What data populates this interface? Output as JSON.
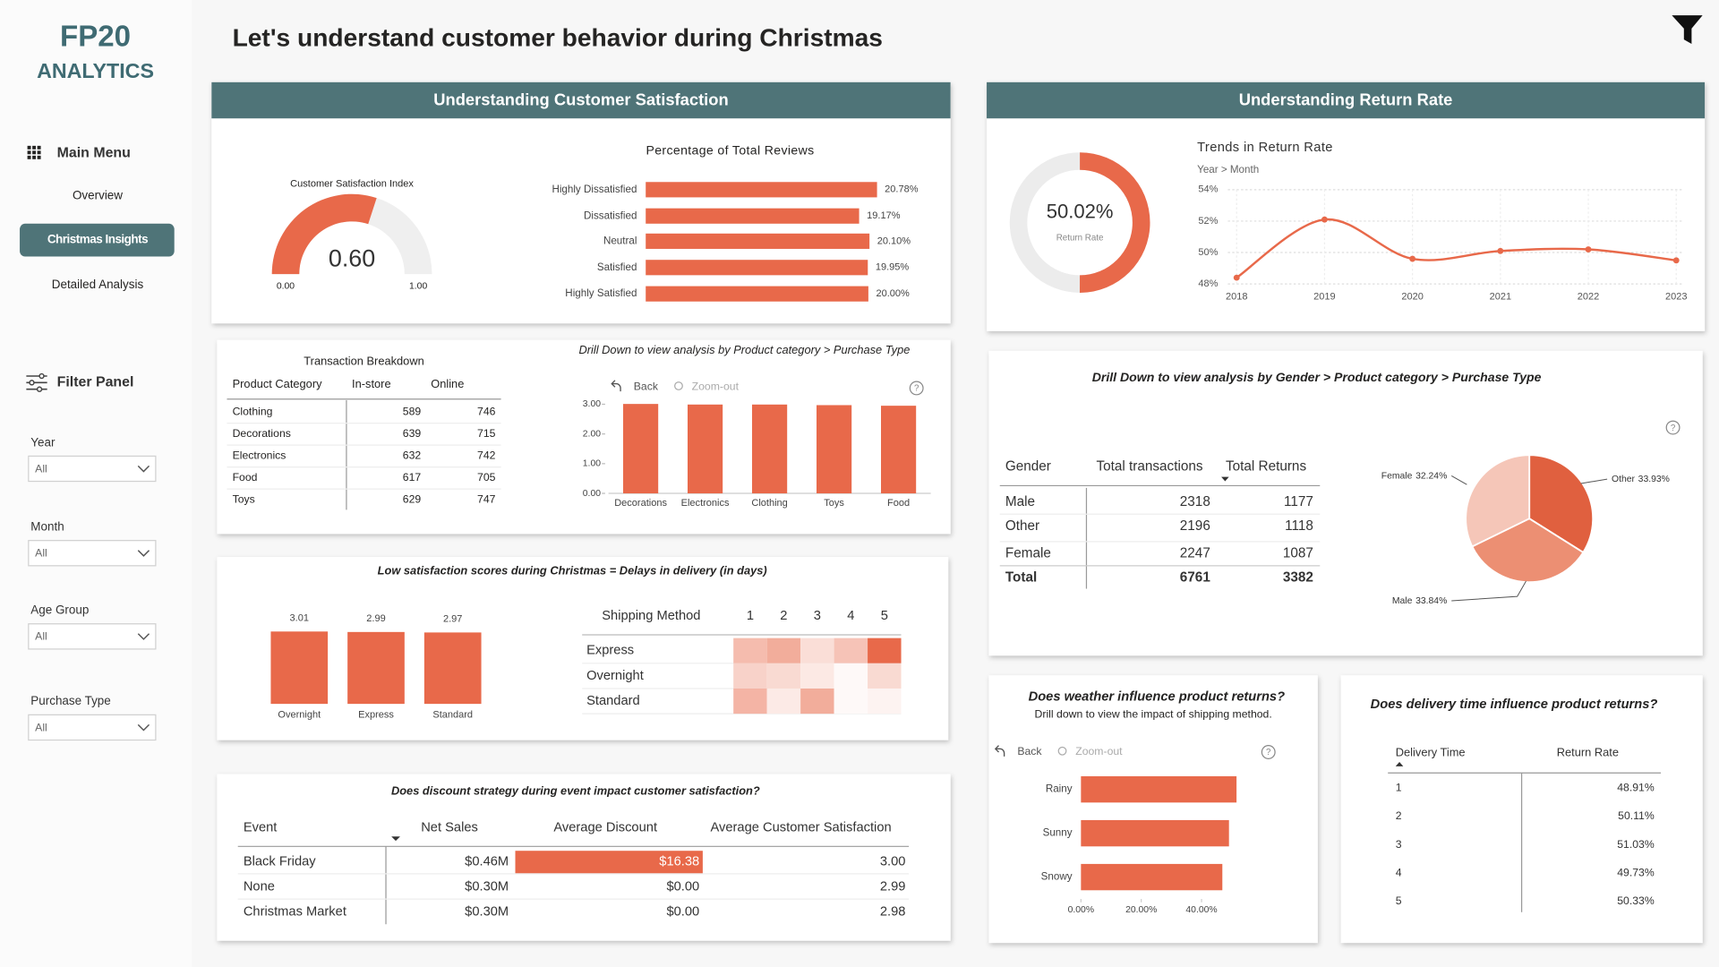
{
  "sidebar": {
    "logo": [
      "FP20",
      "ANALYTICS"
    ],
    "menu_title": "Main Menu",
    "menu_items": [
      "Overview",
      "Christmas Insights",
      "Detailed Analysis"
    ],
    "filter_title": "Filter Panel",
    "filters": [
      {
        "label": "Year",
        "value": "All"
      },
      {
        "label": "Month",
        "value": "All"
      },
      {
        "label": "Age Group",
        "value": "All"
      },
      {
        "label": "Purchase Type",
        "value": "All"
      }
    ]
  },
  "header": {
    "title": "Let's understand customer behavior during Christmas"
  },
  "sections": [
    "Understanding Customer Satisfaction",
    "Understanding Return Rate"
  ],
  "chart_data": [
    {
      "type": "gauge",
      "title": "Customer Satisfaction Index",
      "value": 0.6,
      "value_label": "0.60",
      "ylim": [
        0,
        1
      ],
      "yticks": [
        {
          "value": 0,
          "label": "0.00"
        },
        {
          "value": 1,
          "label": "1.00"
        }
      ],
      "color": "#e8694a"
    },
    {
      "type": "hbar",
      "title": "Percentage of Total Reviews",
      "categories": [
        "Highly Dissatisfied",
        "Dissatisfied",
        "Neutral",
        "Satisfied",
        "Highly Satisfied"
      ],
      "values": [
        20.78,
        19.17,
        20.1,
        19.95,
        20.0
      ],
      "value_labels": [
        "20.78%",
        "19.17%",
        "20.10%",
        "19.95%",
        "20.00%"
      ],
      "color": "#e8694a"
    },
    {
      "type": "donut",
      "label": "Return Rate",
      "value": 50.02,
      "value_label": "50.02%",
      "color": "#e8694a"
    },
    {
      "type": "line",
      "title": "Trends in Return Rate",
      "subtitle": "Year > Month",
      "categories": [
        "2018",
        "2019",
        "2020",
        "2021",
        "2022",
        "2023"
      ],
      "values": [
        48.4,
        52.1,
        49.6,
        50.1,
        50.2,
        49.5
      ],
      "ylim": [
        48,
        54
      ],
      "yticks": [
        {
          "value": 48,
          "label": "48%"
        },
        {
          "value": 50,
          "label": "50%"
        },
        {
          "value": 52,
          "label": "52%"
        },
        {
          "value": 54,
          "label": "54%"
        }
      ],
      "grid": true,
      "color": "#e8694a"
    },
    {
      "type": "bar",
      "title": "Drill Down to view analysis by Product category > Purchase Type",
      "controls": [
        "Back",
        "Zoom-out"
      ],
      "categories": [
        "Decorations",
        "Electronics",
        "Clothing",
        "Toys",
        "Food"
      ],
      "values": [
        3.01,
        2.99,
        2.99,
        2.97,
        2.95
      ],
      "ylim": [
        0,
        3.1
      ],
      "yticks": [
        {
          "value": 0,
          "label": "0.00"
        },
        {
          "value": 1,
          "label": "1.00"
        },
        {
          "value": 2,
          "label": "2.00"
        },
        {
          "value": 3,
          "label": "3.00"
        }
      ],
      "color": "#e8694a"
    },
    {
      "type": "bar",
      "title": "Low satisfaction scores during Christmas = Delays in delivery (in days)",
      "categories": [
        "Overnight",
        "Express",
        "Standard"
      ],
      "values": [
        3.01,
        2.99,
        2.97
      ],
      "color": "#e8694a"
    },
    {
      "type": "heatmap",
      "title": "Shipping Method",
      "x": [
        1,
        2,
        3,
        4,
        5
      ],
      "categories": [
        "Express",
        "Overnight",
        "Standard"
      ],
      "values": [
        [
          45,
          55,
          22,
          40,
          100
        ],
        [
          30,
          25,
          15,
          4,
          25
        ],
        [
          50,
          14,
          55,
          4,
          8
        ]
      ],
      "color": "#e8694a"
    },
    {
      "type": "pie",
      "title": "Drill Down to view analysis by Gender > Product category > Purchase Type",
      "categories": [
        "Other",
        "Male",
        "Female"
      ],
      "values": [
        33.93,
        33.84,
        32.24
      ],
      "value_labels": [
        "33.93%",
        "33.84%",
        "32.24%"
      ],
      "colors": [
        "#e0603f",
        "#ec8f73",
        "#f5c6b8"
      ]
    },
    {
      "type": "hbar",
      "title": "Does weather influence product returns?",
      "subtitle": "Drill down to view the impact of shipping method.",
      "controls": [
        "Back",
        "Zoom-out"
      ],
      "categories": [
        "Rainy",
        "Sunny",
        "Snowy"
      ],
      "values": [
        51.6,
        49.1,
        46.9
      ],
      "xlim": [
        0,
        60
      ],
      "xticks": [
        {
          "value": 0,
          "label": "0.00%"
        },
        {
          "value": 20,
          "label": "20.00%"
        },
        {
          "value": 40,
          "label": "40.00%"
        }
      ],
      "color": "#e8694a"
    }
  ],
  "tables": {
    "transactions": {
      "title": "Transaction Breakdown",
      "columns": [
        "Product Category",
        "In-store",
        "Online"
      ],
      "rows": [
        [
          "Clothing",
          589,
          746
        ],
        [
          "Decorations",
          639,
          715
        ],
        [
          "Electronics",
          632,
          742
        ],
        [
          "Food",
          617,
          705
        ],
        [
          "Toys",
          629,
          747
        ]
      ]
    },
    "gender": {
      "columns": [
        "Gender",
        "Total transactions",
        "Total Returns"
      ],
      "rows": [
        [
          "Male",
          2318,
          1177
        ],
        [
          "Other",
          2196,
          1118
        ],
        [
          "Female",
          2247,
          1087
        ]
      ],
      "total": [
        "Total",
        6761,
        3382
      ]
    },
    "discount": {
      "title": "Does discount strategy during event impact customer satisfaction?",
      "columns": [
        "Event",
        "Net Sales",
        "Average Discount",
        "Average Customer Satisfaction"
      ],
      "rows": [
        [
          "Black Friday",
          "$0.46M",
          "$16.38",
          "3.00"
        ],
        [
          "None",
          "$0.30M",
          "$0.00",
          "2.99"
        ],
        [
          "Christmas Market",
          "$0.30M",
          "$0.00",
          "2.98"
        ]
      ]
    },
    "delivery": {
      "title": "Does delivery time influence product returns?",
      "columns": [
        "Delivery Time",
        "Return Rate"
      ],
      "rows": [
        [
          1,
          "48.91%"
        ],
        [
          2,
          "50.11%"
        ],
        [
          3,
          "51.03%"
        ],
        [
          4,
          "49.73%"
        ],
        [
          5,
          "50.33%"
        ]
      ]
    }
  }
}
